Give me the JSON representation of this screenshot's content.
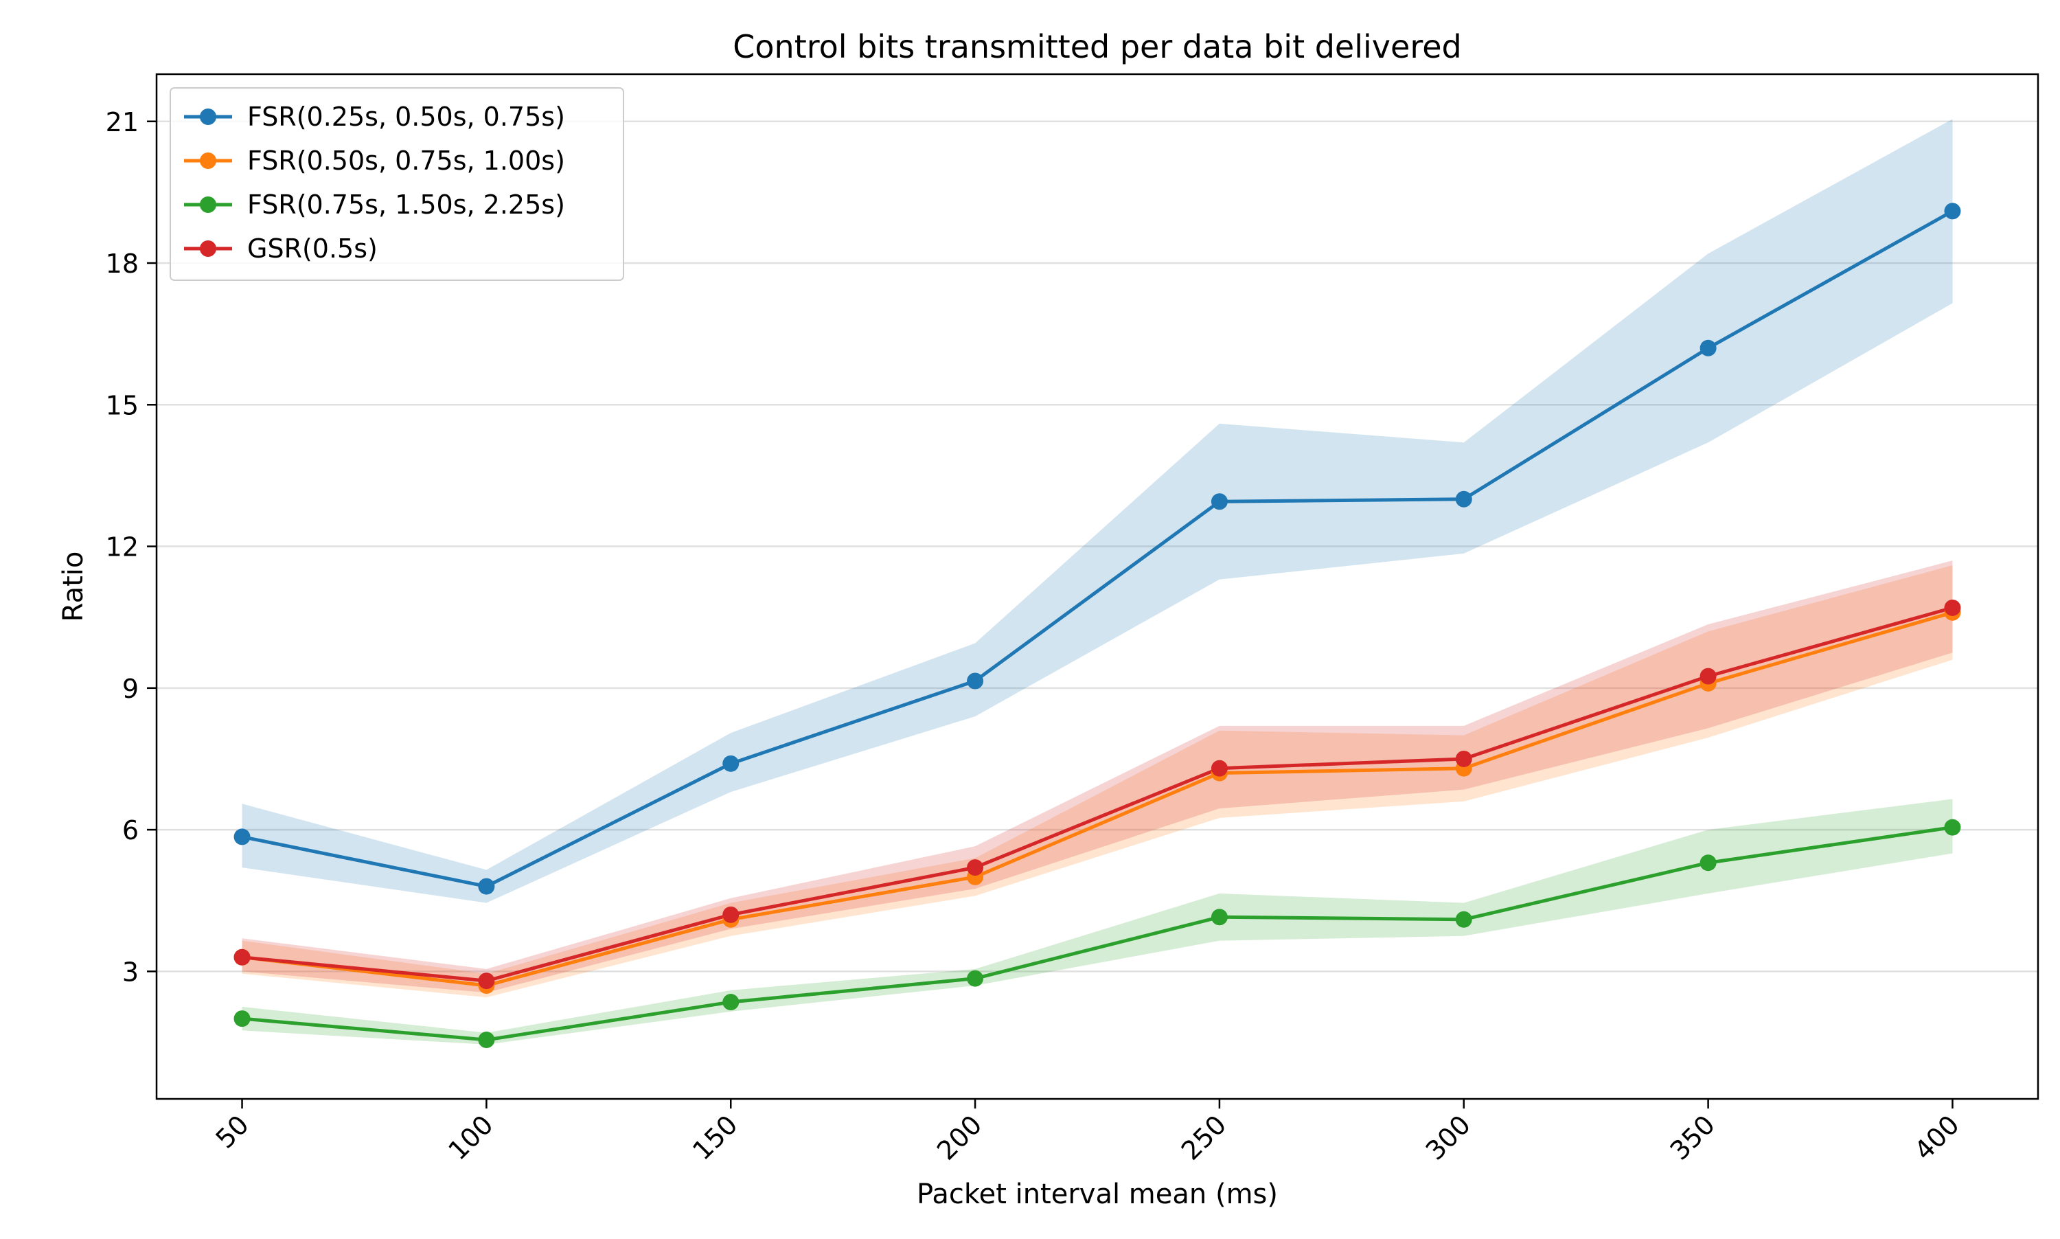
{
  "chart_data": {
    "type": "line",
    "title": "Control bits transmitted per data bit delivered",
    "xlabel": "Packet interval mean (ms)",
    "ylabel": "Ratio",
    "x": [
      50,
      100,
      150,
      200,
      250,
      300,
      350,
      400
    ],
    "xtick_labels": [
      "50",
      "100",
      "150",
      "200",
      "250",
      "300",
      "350",
      "400"
    ],
    "yticks": [
      3,
      6,
      9,
      12,
      15,
      18,
      21
    ],
    "ytick_labels": [
      "3",
      "6",
      "9",
      "12",
      "15",
      "18",
      "21"
    ],
    "xlim": [
      32.5,
      417.5
    ],
    "ylim": [
      0.3,
      22.0
    ],
    "grid": "horizontal",
    "legend_position": "top-left",
    "series": [
      {
        "name": "FSR(0.25s, 0.50s, 0.75s)",
        "color": "#1f77b4",
        "values": [
          5.85,
          4.8,
          7.4,
          9.15,
          12.95,
          13.0,
          16.2,
          19.1
        ],
        "lower": [
          5.2,
          4.45,
          6.8,
          8.4,
          11.3,
          11.85,
          14.2,
          17.15
        ],
        "upper": [
          6.55,
          5.15,
          8.05,
          9.95,
          14.6,
          14.2,
          18.2,
          21.05
        ]
      },
      {
        "name": "FSR(0.50s, 0.75s, 1.00s)",
        "color": "#ff7f0e",
        "values": [
          3.3,
          2.7,
          4.1,
          5.0,
          7.2,
          7.3,
          9.1,
          10.6
        ],
        "lower": [
          2.95,
          2.45,
          3.75,
          4.6,
          6.25,
          6.6,
          7.95,
          9.6
        ],
        "upper": [
          3.65,
          2.95,
          4.45,
          5.4,
          8.1,
          8.0,
          10.2,
          11.6
        ]
      },
      {
        "name": "FSR(0.75s, 1.50s, 2.25s)",
        "color": "#2ca02c",
        "values": [
          2.0,
          1.55,
          2.35,
          2.85,
          4.15,
          4.1,
          5.3,
          6.05
        ],
        "lower": [
          1.75,
          1.45,
          2.15,
          2.7,
          3.65,
          3.75,
          4.65,
          5.5
        ],
        "upper": [
          2.25,
          1.7,
          2.6,
          3.05,
          4.65,
          4.45,
          6.0,
          6.65
        ]
      },
      {
        "name": "GSR(0.5s)",
        "color": "#d62728",
        "values": [
          3.3,
          2.8,
          4.2,
          5.2,
          7.3,
          7.5,
          9.25,
          10.7
        ],
        "lower": [
          3.0,
          2.55,
          3.9,
          4.75,
          6.45,
          6.85,
          8.15,
          9.75
        ],
        "upper": [
          3.7,
          3.05,
          4.55,
          5.65,
          8.2,
          8.2,
          10.35,
          11.7
        ]
      }
    ]
  }
}
